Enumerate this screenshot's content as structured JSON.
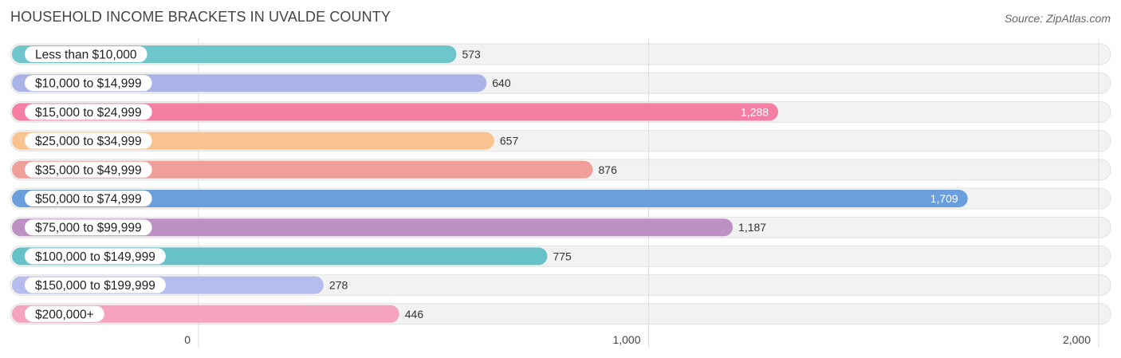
{
  "header": {
    "title": "HOUSEHOLD INCOME BRACKETS IN UVALDE COUNTY",
    "source": "Source: ZipAtlas.com"
  },
  "chart_data": {
    "type": "bar",
    "orientation": "horizontal",
    "title": "HOUSEHOLD INCOME BRACKETS IN UVALDE COUNTY",
    "categories": [
      "Less than $10,000",
      "$10,000 to $14,999",
      "$15,000 to $24,999",
      "$25,000 to $34,999",
      "$35,000 to $49,999",
      "$50,000 to $74,999",
      "$75,000 to $99,999",
      "$100,000 to $149,999",
      "$150,000 to $199,999",
      "$200,000+"
    ],
    "values": [
      573,
      640,
      1288,
      657,
      876,
      1709,
      1187,
      775,
      278,
      446
    ],
    "value_labels": [
      "573",
      "640",
      "1,288",
      "657",
      "876",
      "1,709",
      "1,187",
      "775",
      "278",
      "446"
    ],
    "colors": [
      "#6ec6cc",
      "#a9b3e8",
      "#f57fa3",
      "#f9c38f",
      "#ef9e99",
      "#6a9fdd",
      "#bd91c4",
      "#66c1c8",
      "#b7bcee",
      "#f5a3be"
    ],
    "xlim": [
      0,
      2000
    ],
    "ticks": [
      0,
      1000,
      2000
    ],
    "tick_labels": [
      "0",
      "1,000",
      "2,000"
    ],
    "grid": true
  }
}
